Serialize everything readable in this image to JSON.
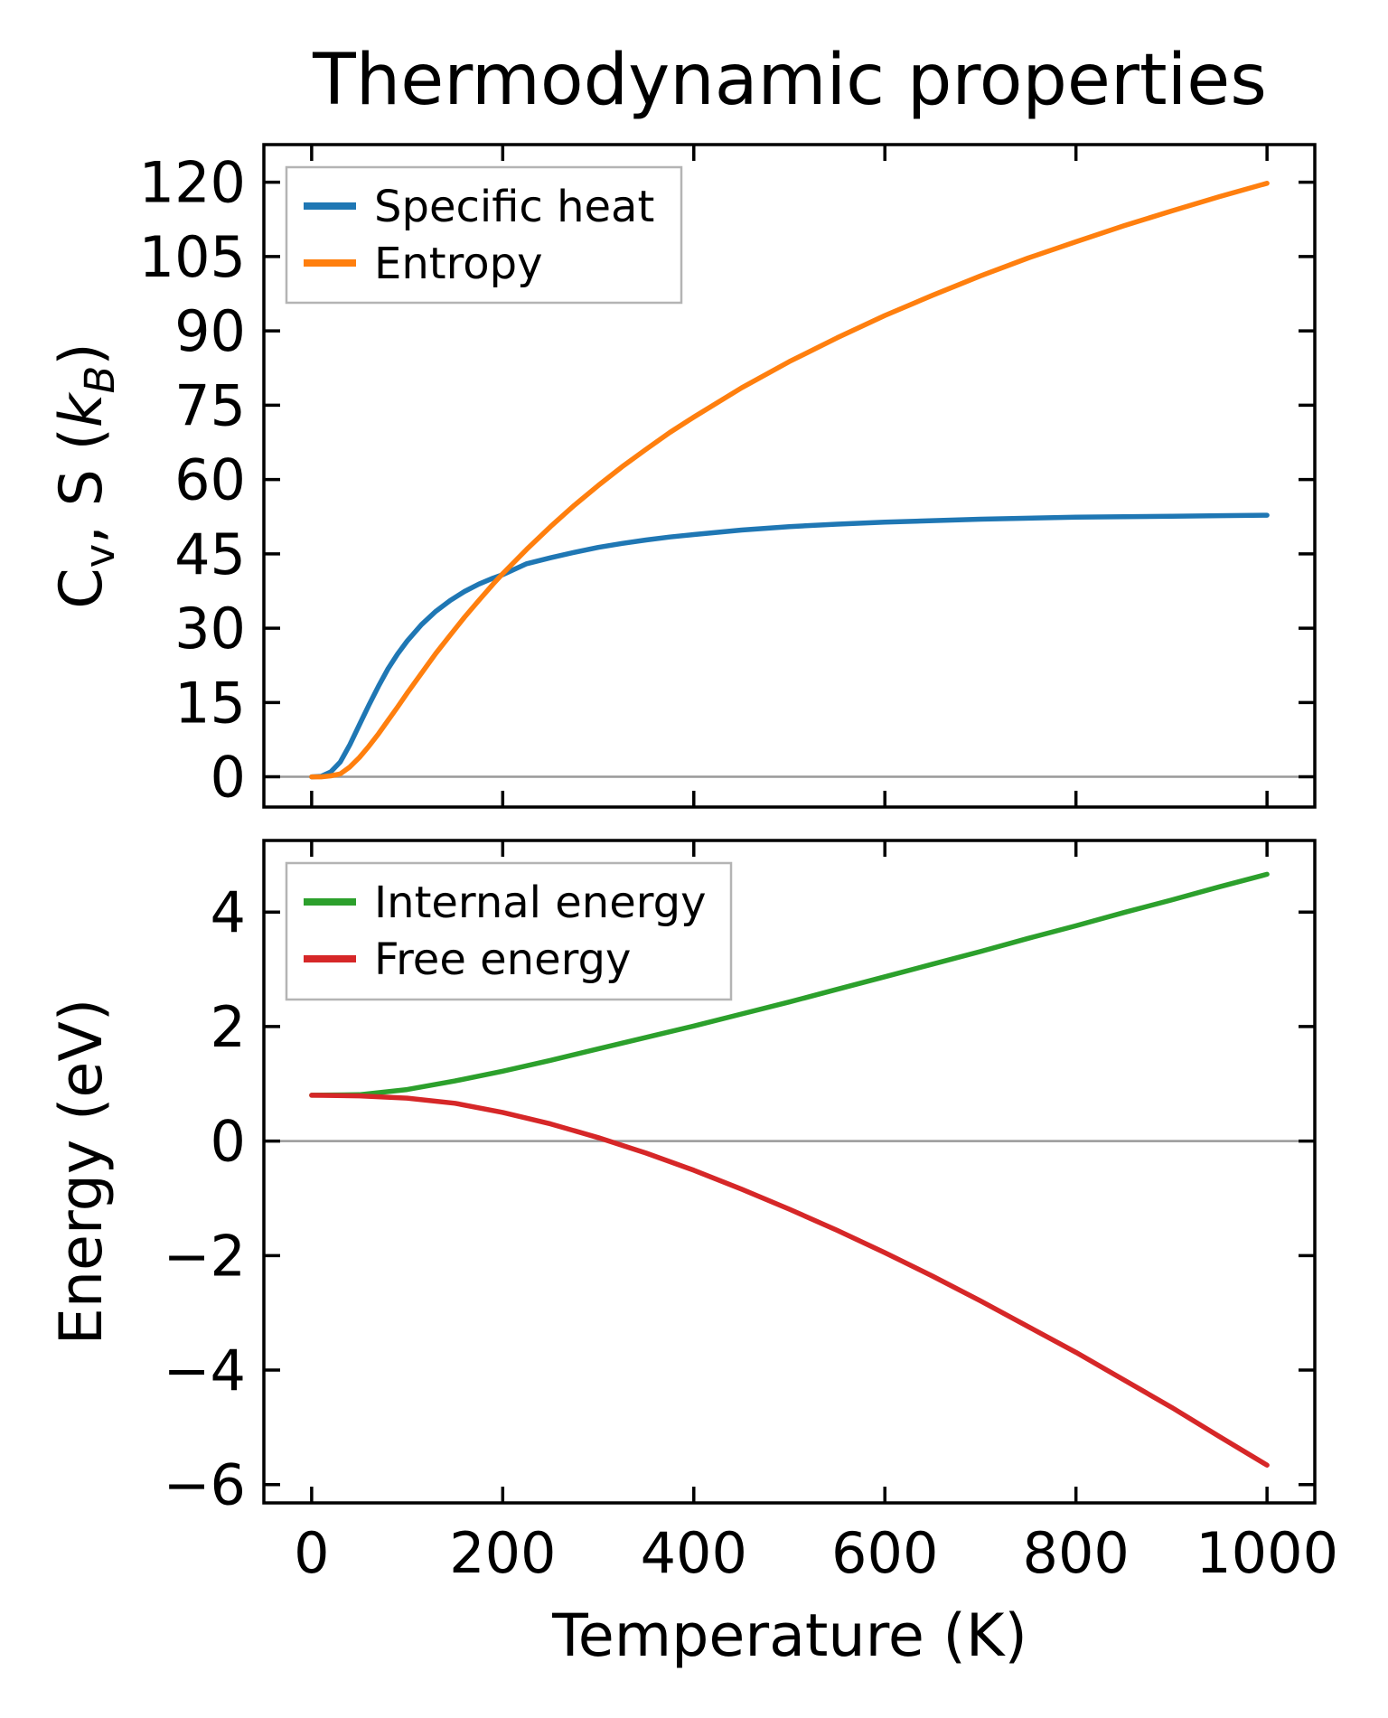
{
  "figure": {
    "title": "Thermodynamic properties",
    "background": "#ffffff"
  },
  "styles": {
    "axis_color": "#000000",
    "text_color": "#000000",
    "zero_line_color": "#999999",
    "legend_border_color": "#b4b4b4",
    "legend_fill": "#ffffff",
    "blue": "#1f77b4",
    "orange": "#ff7f0e",
    "green": "#2ca02c",
    "red": "#d62728"
  },
  "x_axis": {
    "label": "Temperature (K)",
    "ticks": [
      0,
      200,
      400,
      600,
      800,
      1000
    ],
    "xlim": [
      -50,
      1050
    ]
  },
  "top_plot": {
    "ylabel_segments": [
      {
        "t": "C",
        "sub": false,
        "italic": false
      },
      {
        "t": "v",
        "sub": true,
        "italic": false
      },
      {
        "t": ", S (",
        "sub": false,
        "italic": false
      },
      {
        "t": "k",
        "sub": false,
        "italic": true
      },
      {
        "t": "B",
        "sub": true,
        "italic": true
      },
      {
        "t": ")",
        "sub": false,
        "italic": false
      }
    ],
    "yticks": [
      0,
      15,
      30,
      45,
      60,
      75,
      90,
      105,
      120
    ],
    "ylim": [
      -6.1,
      127.6
    ],
    "zero_line": 0,
    "legend": [
      {
        "label": "Specific heat",
        "color": "#1f77b4"
      },
      {
        "label": "Entropy",
        "color": "#ff7f0e"
      }
    ]
  },
  "bottom_plot": {
    "ylabel_segments": [
      {
        "t": "Energy (eV)",
        "sub": false,
        "italic": false
      }
    ],
    "yticks": [
      -6,
      -4,
      -2,
      0,
      2,
      4
    ],
    "ylim": [
      -6.32,
      5.25
    ],
    "zero_line": 0,
    "legend": [
      {
        "label": "Internal energy",
        "color": "#2ca02c"
      },
      {
        "label": "Free energy",
        "color": "#d62728"
      }
    ]
  },
  "chart_data": [
    {
      "type": "line",
      "panel": "top",
      "title": "Thermodynamic properties",
      "xlabel": "Temperature (K)",
      "ylabel": "Cv, S (kB)",
      "xlim": [
        -50,
        1050
      ],
      "ylim": [
        -6.1,
        127.6
      ],
      "legend_position": "upper left",
      "grid": false,
      "series": [
        {
          "name": "Specific heat",
          "color": "#1f77b4",
          "points": [
            [
              0,
              0
            ],
            [
              10,
              0.1
            ],
            [
              20,
              1.0
            ],
            [
              30,
              3.0
            ],
            [
              40,
              6.5
            ],
            [
              50,
              10.5
            ],
            [
              60,
              14.5
            ],
            [
              70,
              18.3
            ],
            [
              80,
              21.8
            ],
            [
              90,
              24.8
            ],
            [
              100,
              27.4
            ],
            [
              115,
              30.7
            ],
            [
              130,
              33.4
            ],
            [
              145,
              35.6
            ],
            [
              160,
              37.4
            ],
            [
              175,
              38.9
            ],
            [
              190,
              40.1
            ],
            [
              200,
              40.8
            ],
            [
              225,
              43.0
            ],
            [
              250,
              44.2
            ],
            [
              275,
              45.3
            ],
            [
              300,
              46.3
            ],
            [
              325,
              47.1
            ],
            [
              350,
              47.8
            ],
            [
              375,
              48.4
            ],
            [
              400,
              48.9
            ],
            [
              450,
              49.8
            ],
            [
              500,
              50.5
            ],
            [
              550,
              51.0
            ],
            [
              600,
              51.4
            ],
            [
              650,
              51.7
            ],
            [
              700,
              52.0
            ],
            [
              750,
              52.2
            ],
            [
              800,
              52.4
            ],
            [
              850,
              52.5
            ],
            [
              900,
              52.6
            ],
            [
              950,
              52.7
            ],
            [
              1000,
              52.8
            ]
          ]
        },
        {
          "name": "Entropy",
          "color": "#ff7f0e",
          "points": [
            [
              0,
              0
            ],
            [
              10,
              0.0
            ],
            [
              20,
              0.2
            ],
            [
              30,
              0.6
            ],
            [
              40,
              2.0
            ],
            [
              50,
              3.9
            ],
            [
              60,
              6.2
            ],
            [
              70,
              8.7
            ],
            [
              80,
              11.4
            ],
            [
              90,
              14.1
            ],
            [
              100,
              16.9
            ],
            [
              115,
              20.9
            ],
            [
              130,
              24.9
            ],
            [
              145,
              28.6
            ],
            [
              160,
              32.2
            ],
            [
              175,
              35.6
            ],
            [
              190,
              38.9
            ],
            [
              200,
              41.0
            ],
            [
              225,
              45.9
            ],
            [
              250,
              50.5
            ],
            [
              275,
              54.8
            ],
            [
              300,
              58.8
            ],
            [
              325,
              62.6
            ],
            [
              350,
              66.1
            ],
            [
              375,
              69.5
            ],
            [
              400,
              72.6
            ],
            [
              450,
              78.5
            ],
            [
              500,
              83.8
            ],
            [
              550,
              88.6
            ],
            [
              600,
              93.1
            ],
            [
              650,
              97.2
            ],
            [
              700,
              101.1
            ],
            [
              750,
              104.7
            ],
            [
              800,
              108.0
            ],
            [
              850,
              111.2
            ],
            [
              900,
              114.2
            ],
            [
              950,
              117.1
            ],
            [
              1000,
              119.8
            ]
          ]
        }
      ]
    },
    {
      "type": "line",
      "panel": "bottom",
      "xlabel": "Temperature (K)",
      "ylabel": "Energy (eV)",
      "xlim": [
        -50,
        1050
      ],
      "ylim": [
        -6.32,
        5.25
      ],
      "legend_position": "upper left",
      "grid": false,
      "series": [
        {
          "name": "Internal energy",
          "color": "#2ca02c",
          "points": [
            [
              0,
              0.8
            ],
            [
              50,
              0.81
            ],
            [
              100,
              0.9
            ],
            [
              150,
              1.05
            ],
            [
              200,
              1.22
            ],
            [
              250,
              1.41
            ],
            [
              300,
              1.61
            ],
            [
              350,
              1.81
            ],
            [
              400,
              2.01
            ],
            [
              450,
              2.22
            ],
            [
              500,
              2.43
            ],
            [
              550,
              2.65
            ],
            [
              600,
              2.87
            ],
            [
              650,
              3.09
            ],
            [
              700,
              3.31
            ],
            [
              750,
              3.54
            ],
            [
              800,
              3.76
            ],
            [
              850,
              3.99
            ],
            [
              900,
              4.21
            ],
            [
              950,
              4.44
            ],
            [
              1000,
              4.66
            ]
          ]
        },
        {
          "name": "Free energy",
          "color": "#d62728",
          "points": [
            [
              0,
              0.8
            ],
            [
              50,
              0.79
            ],
            [
              100,
              0.75
            ],
            [
              150,
              0.66
            ],
            [
              200,
              0.5
            ],
            [
              250,
              0.3
            ],
            [
              300,
              0.06
            ],
            [
              350,
              -0.21
            ],
            [
              400,
              -0.51
            ],
            [
              450,
              -0.84
            ],
            [
              500,
              -1.19
            ],
            [
              550,
              -1.56
            ],
            [
              600,
              -1.95
            ],
            [
              650,
              -2.36
            ],
            [
              700,
              -2.79
            ],
            [
              750,
              -3.24
            ],
            [
              800,
              -3.69
            ],
            [
              850,
              -4.17
            ],
            [
              900,
              -4.65
            ],
            [
              950,
              -5.16
            ],
            [
              1000,
              -5.66
            ]
          ]
        }
      ]
    }
  ]
}
